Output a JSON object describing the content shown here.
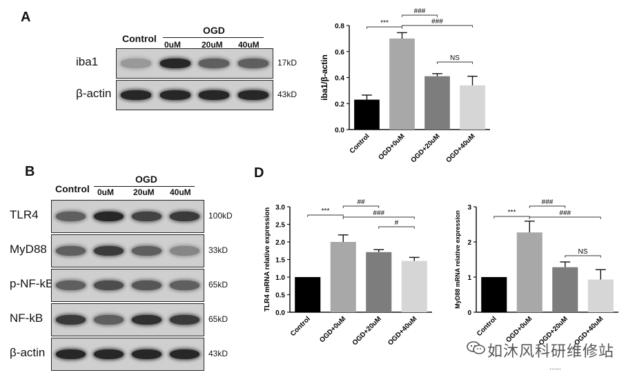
{
  "panels": {
    "A": {
      "letter": "A",
      "lane_headers": {
        "control": "Control",
        "ogd": "OGD",
        "lanes": [
          "0uM",
          "20uM",
          "40uM"
        ]
      },
      "blots": [
        {
          "protein": "iba1",
          "kd": "17kD",
          "intensities": [
            0.25,
            0.85,
            0.55,
            0.55
          ]
        },
        {
          "protein": "β-actin",
          "kd": "43kD",
          "intensities": [
            0.85,
            0.85,
            0.85,
            0.85
          ]
        }
      ]
    },
    "B": {
      "letter": "B",
      "lane_headers": {
        "control": "Control",
        "ogd": "OGD",
        "lanes": [
          "0uM",
          "20uM",
          "40uM"
        ]
      },
      "blots": [
        {
          "protein": "TLR4",
          "kd": "100kD",
          "intensities": [
            0.55,
            0.85,
            0.7,
            0.75
          ]
        },
        {
          "protein": "MyD88",
          "kd": "33kD",
          "intensities": [
            0.55,
            0.75,
            0.55,
            0.35
          ]
        },
        {
          "protein": "p-NF-kB",
          "kd": "65kD",
          "intensities": [
            0.55,
            0.65,
            0.6,
            0.55
          ]
        },
        {
          "protein": "NF-kB",
          "kd": "65kD",
          "intensities": [
            0.75,
            0.55,
            0.8,
            0.75
          ]
        },
        {
          "protein": "β-actin",
          "kd": "43kD",
          "intensities": [
            0.85,
            0.85,
            0.85,
            0.85
          ]
        }
      ]
    },
    "D": {
      "letter": "D"
    }
  },
  "chart_data": [
    {
      "type": "bar",
      "panel": "A",
      "categories": [
        "Control",
        "OGD+0uM",
        "OGD+20uM",
        "OGD+40uM"
      ],
      "values": [
        0.23,
        0.7,
        0.41,
        0.34
      ],
      "errors": [
        0.035,
        0.045,
        0.02,
        0.07
      ],
      "colors": [
        "#000000",
        "#a8a8a8",
        "#7d7d7d",
        "#d6d6d6"
      ],
      "ylabel": "iba1/β-actin",
      "ylim": [
        0,
        0.8
      ],
      "yticks": [
        "0.0",
        "0.2",
        "0.4",
        "0.6",
        "0.8"
      ],
      "annotations": [
        {
          "from": 0,
          "to": 1,
          "label": "***"
        },
        {
          "from": 1,
          "to": 2,
          "label": "###"
        },
        {
          "from": 1,
          "to": 3,
          "label": "###"
        },
        {
          "from": 2,
          "to": 3,
          "label": "NS"
        }
      ]
    },
    {
      "type": "bar",
      "panel": "D-left",
      "categories": [
        "Control",
        "OGD+0uM",
        "OGD+20uM",
        "OGD+40uM"
      ],
      "values": [
        1.0,
        2.0,
        1.71,
        1.46
      ],
      "errors": [
        0.0,
        0.2,
        0.07,
        0.1
      ],
      "colors": [
        "#000000",
        "#a8a8a8",
        "#7d7d7d",
        "#d6d6d6"
      ],
      "ylabel": "TLR4 mRNA relative expression",
      "ylim": [
        0,
        3.0
      ],
      "yticks": [
        "0.0",
        "0.5",
        "1.0",
        "1.5",
        "2.0",
        "2.5",
        "3.0"
      ],
      "annotations": [
        {
          "from": 0,
          "to": 1,
          "label": "***"
        },
        {
          "from": 1,
          "to": 2,
          "label": "##"
        },
        {
          "from": 1,
          "to": 3,
          "label": "###"
        },
        {
          "from": 2,
          "to": 3,
          "label": "#"
        }
      ]
    },
    {
      "type": "bar",
      "panel": "D-right",
      "categories": [
        "Control",
        "OGD+0uM",
        "OGD+20uM",
        "OGD+40uM"
      ],
      "values": [
        1.0,
        2.27,
        1.28,
        0.93
      ],
      "errors": [
        0.0,
        0.32,
        0.15,
        0.28
      ],
      "colors": [
        "#000000",
        "#a8a8a8",
        "#7d7d7d",
        "#d6d6d6"
      ],
      "ylabel": "MyD88 mRNA relative expression",
      "ylim": [
        0,
        3
      ],
      "yticks": [
        "0",
        "1",
        "2",
        "3"
      ],
      "annotations": [
        {
          "from": 0,
          "to": 1,
          "label": "***"
        },
        {
          "from": 1,
          "to": 2,
          "label": "###"
        },
        {
          "from": 1,
          "to": 3,
          "label": "###"
        },
        {
          "from": 2,
          "to": 3,
          "label": "NS"
        }
      ]
    }
  ],
  "watermark": {
    "text": "如沐风科研维修站",
    "dots": "......"
  }
}
